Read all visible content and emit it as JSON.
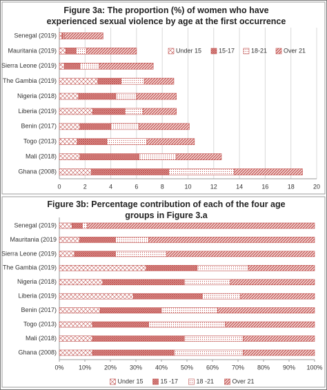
{
  "chart_data": [
    {
      "type": "stacked-bar",
      "title": "Figure 3a: The proportion (%) of women who have experienced sexual violence by age at the first occurrence",
      "categories": [
        "Senegal (2019)",
        "Mauritania (2019)",
        "Sierra Leone (2019)",
        "The Gambia (2019)",
        "Nigeria (2018)",
        "Liberia (2019)",
        "Benin (2017)",
        "Togo (2013)",
        "Mali (2018)",
        "Ghana (2008)"
      ],
      "series": [
        {
          "name": "Under 15",
          "color": "#c0504d",
          "values": [
            0.2,
            0.5,
            0.4,
            3.0,
            1.5,
            2.6,
            1.6,
            1.4,
            1.6,
            2.5
          ]
        },
        {
          "name": "15-17",
          "color": "#c0504d",
          "values": [
            0.1,
            0.8,
            1.2,
            1.8,
            2.9,
            2.5,
            2.4,
            2.3,
            4.6,
            6.0
          ]
        },
        {
          "name": "18-21",
          "color": "#c0504d",
          "values": [
            0.1,
            0.8,
            1.5,
            1.8,
            1.6,
            1.4,
            2.2,
            3.1,
            2.9,
            5.1
          ]
        },
        {
          "name": "Over 21",
          "color": "#c0504d",
          "values": [
            3.0,
            3.9,
            4.2,
            2.3,
            3.1,
            2.6,
            3.9,
            3.7,
            3.5,
            5.3
          ]
        }
      ],
      "xlim": [
        0,
        20
      ],
      "xticks": [
        0,
        2,
        4,
        6,
        8,
        10,
        12,
        14,
        16,
        18,
        20
      ],
      "grid": true,
      "legend": "top-right"
    },
    {
      "type": "stacked-bar",
      "title": "Figure 3b: Percentage contribution of each of the four age groups in Figure 3.a",
      "categories": [
        "Senegal (2019)",
        "Mauritania (2019",
        "Sierra Leone (2019)",
        "The Gambia (2019)",
        "Nigeria (2018)",
        "Liberia (2019)",
        "Benin (2017)",
        "Togo (2013)",
        "Mali (2018)",
        "Ghana (2008)"
      ],
      "series": [
        {
          "name": "Under 15",
          "color": "#c0504d",
          "values": [
            5,
            8,
            6,
            34,
            17,
            29,
            16,
            13,
            13,
            13
          ]
        },
        {
          "name": "15 -17",
          "color": "#c0504d",
          "values": [
            4,
            14,
            16,
            20,
            32,
            27,
            24,
            22,
            36,
            32
          ]
        },
        {
          "name": "18 -21",
          "color": "#c0504d",
          "values": [
            2,
            13,
            20,
            20,
            18,
            15,
            22,
            30,
            23,
            27
          ]
        },
        {
          "name": "Over 21",
          "color": "#c0504d",
          "values": [
            89,
            65,
            58,
            26,
            33,
            29,
            38,
            35,
            28,
            28
          ]
        }
      ],
      "xlim": [
        0,
        100
      ],
      "xticks": [
        {
          "value": 0,
          "label": "0%"
        },
        {
          "value": 10,
          "label": "10%"
        },
        {
          "value": 20,
          "label": "20%"
        },
        {
          "value": 30,
          "label": "30%"
        },
        {
          "value": 40,
          "label": "40%"
        },
        {
          "value": 50,
          "label": "50%"
        },
        {
          "value": 60,
          "label": "60%"
        },
        {
          "value": 70,
          "label": "70%"
        },
        {
          "value": 80,
          "label": "80%"
        },
        {
          "value": 90,
          "label": "90%"
        },
        {
          "value": 100,
          "label": "100%"
        }
      ],
      "grid": false,
      "legend": "bottom"
    }
  ]
}
